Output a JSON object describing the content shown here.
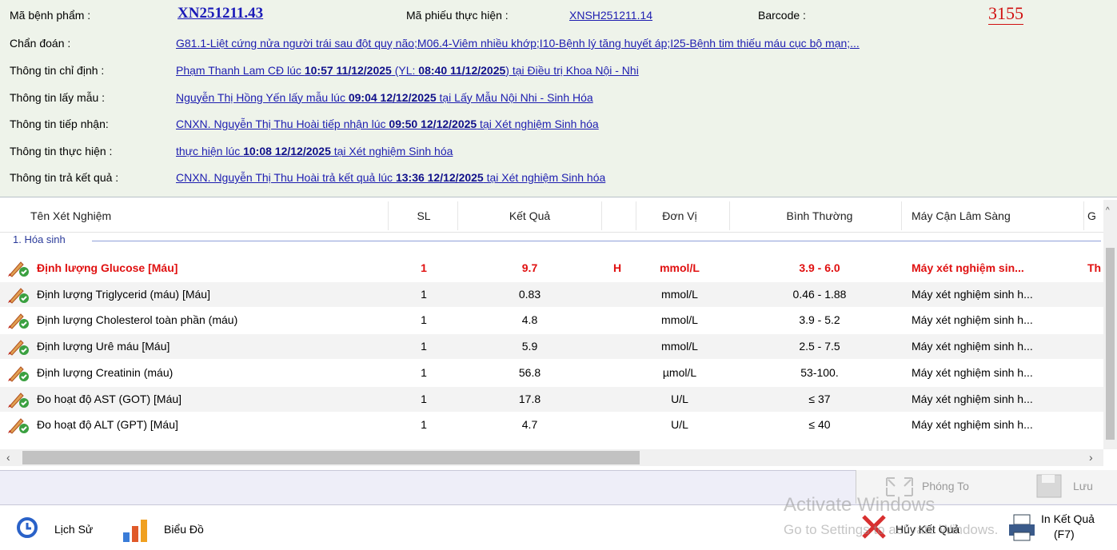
{
  "header": {
    "specimen": {
      "label": "Mã bệnh phẩm :",
      "value": "XN251211.43"
    },
    "order": {
      "label": "Mã phiếu thực hiện :",
      "value": "XNSH251211.14"
    },
    "barcode": {
      "label": "Barcode :",
      "value": "3155"
    },
    "diagnosis": {
      "label": "Chẩn đoán :",
      "value": "G81.1-Liệt cứng nửa người trái sau đột quỵ não;M06.4-Viêm nhiều khớp;I10-Bệnh lý tăng huyết áp;I25-Bệnh tim thiếu máu cục bộ mạn;..."
    },
    "info": [
      {
        "label": "Thông tin chỉ định :",
        "parts": [
          {
            "text": "Phạm Thanh Lam CĐ lúc ",
            "bold": false
          },
          {
            "text": "10:57  11/12/2025",
            "bold": true
          },
          {
            "text": " (YL: ",
            "bold": false
          },
          {
            "text": "08:40  11/12/2025",
            "bold": true
          },
          {
            "text": ") tại Điều trị Khoa Nội - Nhi",
            "bold": false
          }
        ]
      },
      {
        "label": "Thông tin lấy mẫu :",
        "parts": [
          {
            "text": "Nguyễn Thị Hồng Yến lấy mẫu lúc ",
            "bold": false
          },
          {
            "text": "09:04  12/12/2025",
            "bold": true
          },
          {
            "text": " tại Lấy Mẫu Nội Nhi - Sinh Hóa",
            "bold": false
          }
        ]
      },
      {
        "label": "Thông tin tiếp nhận:",
        "parts": [
          {
            "text": "CNXN. Nguyễn Thị Thu Hoài tiếp nhận lúc ",
            "bold": false
          },
          {
            "text": "09:50  12/12/2025",
            "bold": true
          },
          {
            "text": " tại Xét nghiệm Sinh hóa",
            "bold": false
          }
        ]
      },
      {
        "label": "Thông tin thực hiện :",
        "parts": [
          {
            "text": " thực hiện lúc ",
            "bold": false
          },
          {
            "text": "10:08  12/12/2025",
            "bold": true
          },
          {
            "text": " tại Xét nghiệm Sinh hóa",
            "bold": false
          }
        ]
      },
      {
        "label": "Thông tin trả kết quả :",
        "parts": [
          {
            "text": "CNXN. Nguyễn Thị Thu Hoài trả kết quả lúc ",
            "bold": false
          },
          {
            "text": "13:36  12/12/2025",
            "bold": true
          },
          {
            "text": " tại Xét nghiệm Sinh hóa",
            "bold": false
          }
        ]
      }
    ]
  },
  "table": {
    "columns": [
      "Tên Xét Nghiệm",
      "SL",
      "Kết Quả",
      "Đơn Vị",
      "Bình Thường",
      "Máy Cận Lâm Sàng",
      "G"
    ],
    "group": "1. Hóa sinh",
    "rows": [
      {
        "name": "Định lượng Glucose [Máu]",
        "qty": 1,
        "result": 9.7,
        "flag": "H",
        "unit": "mmol/L",
        "range": "3.9 - 6.0",
        "machine": "Máy xét nghiệm sin...",
        "extra": "Th",
        "abnormal": true
      },
      {
        "name": "Định lượng Triglycerid (máu) [Máu]",
        "qty": 1,
        "result": 0.83,
        "unit": "mmol/L",
        "range": "0.46 - 1.88",
        "machine": "Máy xét nghiệm sinh h..."
      },
      {
        "name": "Định lượng Cholesterol toàn phần (máu)",
        "qty": 1,
        "result": 4.8,
        "unit": "mmol/L",
        "range": "3.9 - 5.2",
        "machine": "Máy xét nghiệm sinh h..."
      },
      {
        "name": "Định lượng Urê máu [Máu]",
        "qty": 1,
        "result": 5.9,
        "unit": "mmol/L",
        "range": "2.5 - 7.5",
        "machine": "Máy xét nghiệm sinh h..."
      },
      {
        "name": "Định lượng Creatinin (máu)",
        "qty": 1,
        "result": 56.8,
        "unit": "µmol/L",
        "range": "53-100.",
        "machine": "Máy xét nghiệm sinh h..."
      },
      {
        "name": "Đo hoạt độ AST (GOT) [Máu]",
        "qty": 1,
        "result": 17.8,
        "unit": "U/L",
        "range": "≤ 37",
        "machine": "Máy xét nghiệm sinh h..."
      },
      {
        "name": "Đo hoạt độ ALT (GPT) [Máu]",
        "qty": 1,
        "result": 4.7,
        "unit": "U/L",
        "range": "≤ 40",
        "machine": "Máy xét nghiệm sinh h..."
      }
    ]
  },
  "buttons": {
    "zoom": "Phóng To",
    "save": "Lưu",
    "history": "Lịch Sử",
    "chart": "Biểu Đồ",
    "cancel": "Hủy Kết Quả",
    "print": "In Kết Quả",
    "print_key": "(F7)"
  },
  "watermark": {
    "title": "Activate Windows",
    "text": "Go to Settings to activate Windows."
  }
}
